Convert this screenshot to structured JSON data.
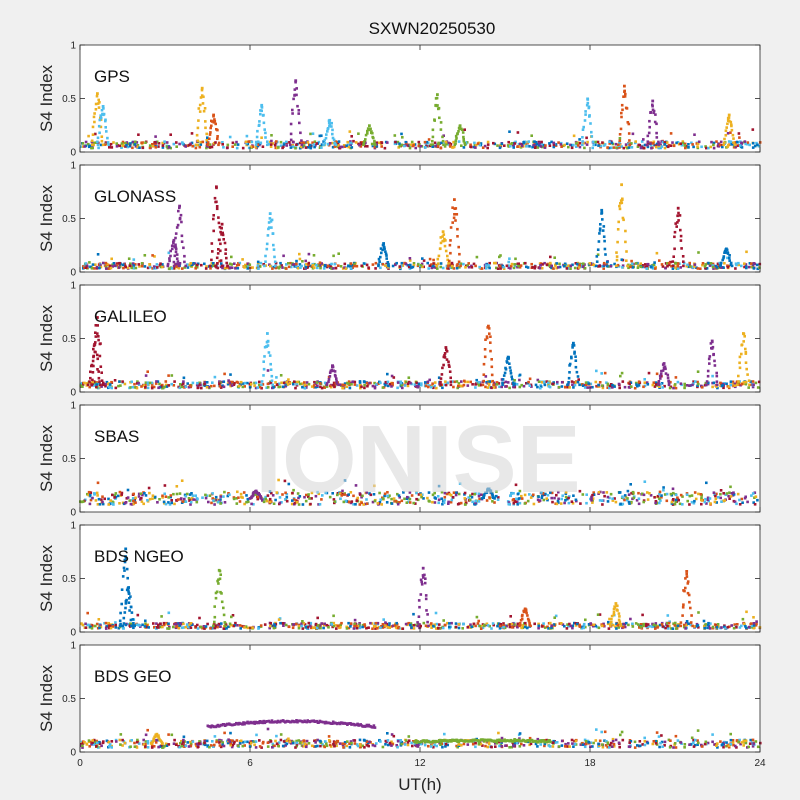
{
  "watermark": "IONISE",
  "chart_data": {
    "type": "scatter",
    "title": "SXWN20250530",
    "xlabel": "UT(h)",
    "ylabel": "S4 Index",
    "xlim": [
      0,
      24
    ],
    "ylim": [
      0,
      1
    ],
    "xticks": [
      "0",
      "6",
      "12",
      "18",
      "24"
    ],
    "yticks": [
      "0",
      "0.5",
      "1"
    ],
    "colors": [
      "#0072BD",
      "#D95319",
      "#EDB120",
      "#7E2F8E",
      "#77AC30",
      "#4DBEEE",
      "#A2142F"
    ],
    "panels": [
      {
        "name": "GPS",
        "baseline": 0.07,
        "spikes": [
          {
            "t": 0.6,
            "peak": 0.55,
            "color": 2
          },
          {
            "t": 0.8,
            "peak": 0.43,
            "color": 5
          },
          {
            "t": 4.3,
            "peak": 0.6,
            "color": 2
          },
          {
            "t": 4.7,
            "peak": 0.35,
            "color": 1
          },
          {
            "t": 6.4,
            "peak": 0.44,
            "color": 5
          },
          {
            "t": 7.6,
            "peak": 0.67,
            "color": 3
          },
          {
            "t": 8.8,
            "peak": 0.3,
            "color": 5
          },
          {
            "t": 10.2,
            "peak": 0.25,
            "color": 4
          },
          {
            "t": 12.6,
            "peak": 0.54,
            "color": 4
          },
          {
            "t": 13.4,
            "peak": 0.25,
            "color": 4
          },
          {
            "t": 17.9,
            "peak": 0.5,
            "color": 5
          },
          {
            "t": 19.2,
            "peak": 0.62,
            "color": 1
          },
          {
            "t": 20.2,
            "peak": 0.48,
            "color": 3
          },
          {
            "t": 22.9,
            "peak": 0.35,
            "color": 2
          }
        ]
      },
      {
        "name": "GLONASS",
        "baseline": 0.06,
        "spikes": [
          {
            "t": 3.3,
            "peak": 0.3,
            "color": 3
          },
          {
            "t": 3.5,
            "peak": 0.62,
            "color": 3
          },
          {
            "t": 4.8,
            "peak": 0.8,
            "color": 6
          },
          {
            "t": 5.0,
            "peak": 0.45,
            "color": 6
          },
          {
            "t": 6.7,
            "peak": 0.55,
            "color": 5
          },
          {
            "t": 10.7,
            "peak": 0.27,
            "color": 0
          },
          {
            "t": 12.8,
            "peak": 0.38,
            "color": 2
          },
          {
            "t": 13.2,
            "peak": 0.68,
            "color": 1
          },
          {
            "t": 18.4,
            "peak": 0.58,
            "color": 0
          },
          {
            "t": 19.1,
            "peak": 0.82,
            "color": 2
          },
          {
            "t": 21.1,
            "peak": 0.6,
            "color": 6
          },
          {
            "t": 22.8,
            "peak": 0.22,
            "color": 0
          }
        ]
      },
      {
        "name": "GALILEO",
        "baseline": 0.07,
        "spikes": [
          {
            "t": 0.5,
            "peak": 0.45,
            "color": 6
          },
          {
            "t": 0.6,
            "peak": 0.7,
            "color": 6
          },
          {
            "t": 6.6,
            "peak": 0.55,
            "color": 5
          },
          {
            "t": 8.9,
            "peak": 0.25,
            "color": 3
          },
          {
            "t": 12.9,
            "peak": 0.42,
            "color": 6
          },
          {
            "t": 14.4,
            "peak": 0.62,
            "color": 1
          },
          {
            "t": 15.1,
            "peak": 0.33,
            "color": 0
          },
          {
            "t": 17.4,
            "peak": 0.46,
            "color": 0
          },
          {
            "t": 20.6,
            "peak": 0.27,
            "color": 3
          },
          {
            "t": 22.3,
            "peak": 0.48,
            "color": 3
          },
          {
            "t": 23.4,
            "peak": 0.55,
            "color": 2
          }
        ]
      },
      {
        "name": "SBAS",
        "baseline": 0.13,
        "spikes": [
          {
            "t": 6.2,
            "peak": 0.2,
            "color": 3
          },
          {
            "t": 14.4,
            "peak": 0.22,
            "color": 0
          }
        ]
      },
      {
        "name": "BDS NGEO",
        "baseline": 0.06,
        "spikes": [
          {
            "t": 1.6,
            "peak": 0.78,
            "color": 0
          },
          {
            "t": 1.7,
            "peak": 0.42,
            "color": 0
          },
          {
            "t": 4.9,
            "peak": 0.58,
            "color": 4
          },
          {
            "t": 12.1,
            "peak": 0.6,
            "color": 3
          },
          {
            "t": 15.7,
            "peak": 0.22,
            "color": 1
          },
          {
            "t": 18.9,
            "peak": 0.27,
            "color": 2
          },
          {
            "t": 21.4,
            "peak": 0.57,
            "color": 1
          }
        ]
      },
      {
        "name": "BDS GEO",
        "baseline": 0.08,
        "spikes": [
          {
            "t": 2.7,
            "peak": 0.17,
            "color": 2
          }
        ],
        "bands": [
          {
            "t0": 4.5,
            "t1": 10.4,
            "y": 0.24,
            "bump": 0.05,
            "color": 3
          },
          {
            "t0": 11.8,
            "t1": 16.6,
            "y": 0.1,
            "bump": 0.01,
            "color": 4
          }
        ]
      }
    ]
  }
}
